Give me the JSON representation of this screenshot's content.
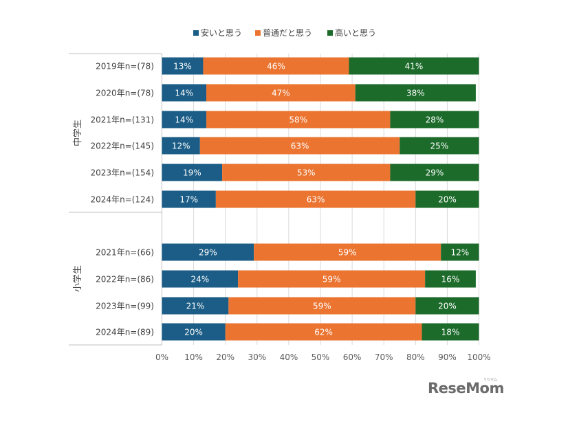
{
  "chart_data": {
    "type": "bar",
    "orientation": "horizontal",
    "stacked": true,
    "xlim": [
      0,
      100
    ],
    "x_ticks": [
      "0%",
      "10%",
      "20%",
      "30%",
      "40%",
      "50%",
      "60%",
      "70%",
      "80%",
      "90%",
      "100%"
    ],
    "grid": true,
    "legend_position": "top",
    "series": [
      {
        "name": "安いと思う",
        "color": "#1b5d86"
      },
      {
        "name": "普通だと思う",
        "color": "#eb7431"
      },
      {
        "name": "高いと思う",
        "color": "#1c6b2b"
      }
    ],
    "groups": [
      {
        "label": "中学生",
        "rows": [
          {
            "label": "2019年n=(78)",
            "values": [
              13,
              46,
              41
            ]
          },
          {
            "label": "2020年n=(78)",
            "values": [
              14,
              47,
              38
            ]
          },
          {
            "label": "2021年n=(131)",
            "values": [
              14,
              58,
              28
            ]
          },
          {
            "label": "2022年n=(145)",
            "values": [
              12,
              63,
              25
            ]
          },
          {
            "label": "2023年n=(154)",
            "values": [
              19,
              53,
              29
            ]
          },
          {
            "label": "2024年n=(124)",
            "values": [
              17,
              63,
              20
            ]
          }
        ]
      },
      {
        "label": "小学生",
        "rows": [
          {
            "label": "2021年n=(66)",
            "values": [
              29,
              59,
              12
            ]
          },
          {
            "label": "2022年n=(86)",
            "values": [
              24,
              59,
              16
            ]
          },
          {
            "label": "2023年n=(99)",
            "values": [
              21,
              59,
              20
            ]
          },
          {
            "label": "2024年n=(89)",
            "values": [
              20,
              62,
              18
            ]
          }
        ]
      }
    ]
  },
  "watermark": {
    "text": "ReseMom",
    "sub": "リセマム"
  }
}
